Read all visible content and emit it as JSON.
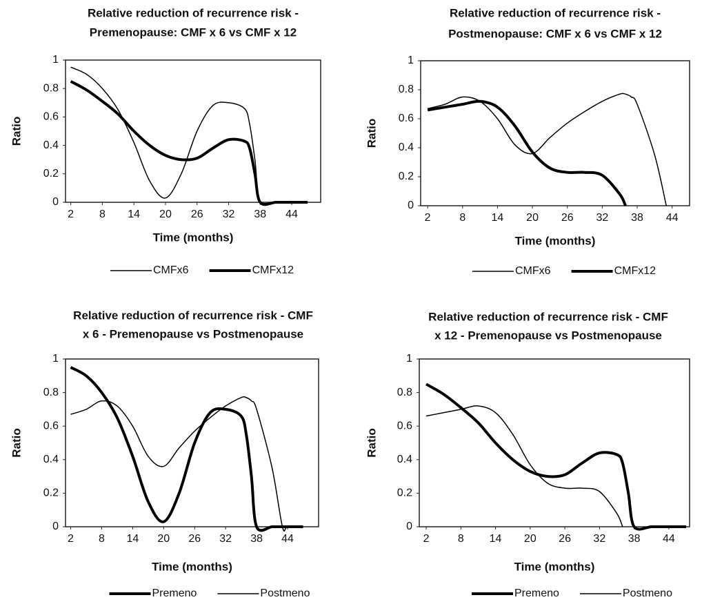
{
  "chart_data": [
    {
      "type": "line",
      "title": [
        "Relative reduction of recurrence risk -",
        "Premenopause: CMF x 6 vs CMF x 12"
      ],
      "x_label": "Time (months)",
      "y_label": "Ratio",
      "x": [
        2,
        5,
        8,
        11,
        14,
        17,
        20,
        23,
        26,
        29,
        32,
        35,
        36,
        37,
        38,
        41,
        43,
        44,
        47
      ],
      "xlim": [
        1,
        49.5
      ],
      "xticks": [
        2,
        8,
        14,
        20,
        26,
        32,
        38,
        44
      ],
      "ylim": [
        0,
        1
      ],
      "yticks": [
        0,
        0.2,
        0.4,
        0.6,
        0.8,
        1
      ],
      "series": [
        {
          "name": "CMFx6",
          "color": "#000000",
          "line_width": 1.5,
          "values": [
            0.95,
            0.9,
            0.8,
            0.65,
            0.42,
            0.15,
            0.03,
            0.2,
            0.5,
            0.68,
            0.7,
            0.66,
            0.55,
            0.3,
            0,
            0,
            0,
            0,
            0
          ]
        },
        {
          "name": "CMFx12",
          "color": "#000000",
          "line_width": 4,
          "values": [
            0.85,
            0.79,
            0.71,
            0.62,
            0.5,
            0.4,
            0.33,
            0.3,
            0.31,
            0.38,
            0.44,
            0.43,
            0.38,
            0.2,
            0,
            0,
            0,
            0,
            0
          ]
        }
      ]
    },
    {
      "type": "line",
      "title": [
        "Relative reduction of recurrence risk -",
        "Postmenopause: CMF x 6 vs CMF x 12"
      ],
      "x_label": "Time (months)",
      "y_label": "Ratio",
      "x": [
        2,
        5,
        8,
        11,
        14,
        17,
        20,
        23,
        26,
        29,
        32,
        35,
        36,
        37,
        38,
        41,
        43,
        44,
        47
      ],
      "xlim": [
        0.8,
        47
      ],
      "xticks": [
        2,
        8,
        14,
        20,
        26,
        32,
        38,
        44
      ],
      "ylim": [
        0,
        1
      ],
      "yticks": [
        0,
        0.2,
        0.4,
        0.6,
        0.8,
        1
      ],
      "series": [
        {
          "name": "CMFx6",
          "color": "#000000",
          "line_width": 1.5,
          "values": [
            0.67,
            0.7,
            0.75,
            0.72,
            0.6,
            0.42,
            0.36,
            0.47,
            0.57,
            0.65,
            0.72,
            0.77,
            0.77,
            0.75,
            0.7,
            0.35,
            0,
            null,
            null
          ]
        },
        {
          "name": "CMFx12",
          "color": "#000000",
          "line_width": 4,
          "values": [
            0.66,
            0.68,
            0.7,
            0.72,
            0.68,
            0.55,
            0.37,
            0.26,
            0.23,
            0.23,
            0.21,
            0.08,
            0,
            null,
            null,
            null,
            null,
            null,
            null
          ]
        }
      ]
    },
    {
      "type": "line",
      "title": [
        "Relative reduction of recurrence risk - CMF",
        "x 6 - Premenopause vs Postmenopause"
      ],
      "x_label": "Time (months)",
      "y_label": "Ratio",
      "x": [
        2,
        5,
        8,
        11,
        14,
        17,
        20,
        23,
        26,
        29,
        32,
        35,
        36,
        37,
        38,
        41,
        43,
        44,
        47
      ],
      "xlim": [
        1,
        50
      ],
      "xticks": [
        2,
        8,
        14,
        20,
        26,
        32,
        38,
        44
      ],
      "ylim": [
        0,
        1
      ],
      "yticks": [
        0,
        0.2,
        0.4,
        0.6,
        0.8,
        1
      ],
      "series": [
        {
          "name": "Premeno",
          "color": "#000000",
          "line_width": 4,
          "values": [
            0.95,
            0.9,
            0.8,
            0.65,
            0.42,
            0.15,
            0.03,
            0.2,
            0.5,
            0.68,
            0.7,
            0.66,
            0.55,
            0.3,
            0,
            0,
            0,
            0,
            0
          ]
        },
        {
          "name": "Postmeno",
          "color": "#000000",
          "line_width": 1.5,
          "values": [
            0.67,
            0.7,
            0.75,
            0.72,
            0.6,
            0.42,
            0.36,
            0.47,
            0.57,
            0.65,
            0.72,
            0.77,
            0.77,
            0.75,
            0.7,
            0.35,
            0,
            0,
            0
          ]
        }
      ]
    },
    {
      "type": "line",
      "title": [
        "Relative reduction of recurrence risk - CMF",
        "x 12 - Premenopause vs Postmenopause"
      ],
      "x_label": "Time (months)",
      "y_label": "Ratio",
      "x": [
        2,
        5,
        8,
        11,
        14,
        17,
        20,
        23,
        26,
        29,
        32,
        35,
        36,
        37,
        38,
        41,
        43,
        44,
        47
      ],
      "xlim": [
        0.8,
        47.6
      ],
      "xticks": [
        2,
        8,
        14,
        20,
        26,
        32,
        38,
        44
      ],
      "ylim": [
        0,
        1
      ],
      "yticks": [
        0,
        0.2,
        0.4,
        0.6,
        0.8,
        1
      ],
      "series": [
        {
          "name": "Premeno",
          "color": "#000000",
          "line_width": 4,
          "values": [
            0.85,
            0.79,
            0.71,
            0.62,
            0.5,
            0.4,
            0.33,
            0.3,
            0.31,
            0.38,
            0.44,
            0.43,
            0.38,
            0.2,
            0,
            0,
            0,
            0,
            0
          ]
        },
        {
          "name": "Postmeno",
          "color": "#000000",
          "line_width": 1.5,
          "values": [
            0.66,
            0.68,
            0.7,
            0.72,
            0.68,
            0.55,
            0.37,
            0.26,
            0.23,
            0.23,
            0.21,
            0.08,
            0,
            null,
            null,
            null,
            null,
            null,
            null
          ]
        }
      ]
    }
  ]
}
